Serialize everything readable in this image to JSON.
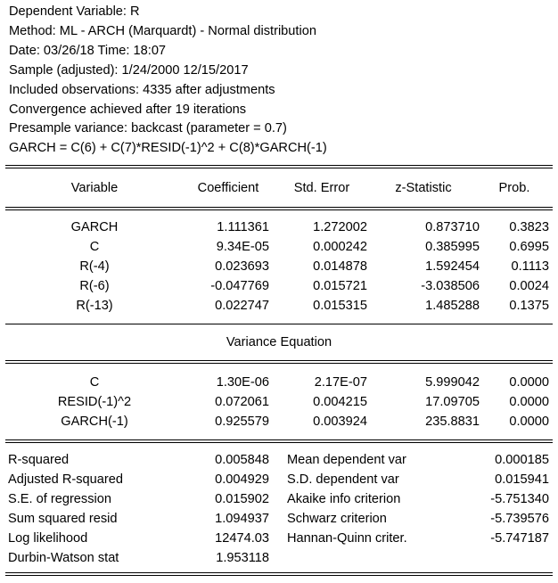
{
  "header": {
    "lines": [
      "Dependent Variable: R",
      "Method: ML - ARCH (Marquardt) - Normal distribution",
      "Date: 03/26/18   Time: 18:07",
      "Sample (adjusted): 1/24/2000 12/15/2017",
      "Included observations: 4335 after adjustments",
      "Convergence achieved after 19 iterations",
      "Presample variance: backcast (parameter = 0.7)",
      "GARCH = C(6) + C(7)*RESID(-1)^2 + C(8)*GARCH(-1)"
    ]
  },
  "columns": {
    "variable": "Variable",
    "coefficient": "Coefficient",
    "std_error": "Std. Error",
    "z_statistic": "z-Statistic",
    "prob": "Prob."
  },
  "mean_rows": [
    {
      "variable": "GARCH",
      "coefficient": "1.111361",
      "std_error": "1.272002",
      "z_statistic": "0.873710",
      "prob": "0.3823"
    },
    {
      "variable": "C",
      "coefficient": "9.34E-05",
      "std_error": "0.000242",
      "z_statistic": "0.385995",
      "prob": "0.6995"
    },
    {
      "variable": "R(-4)",
      "coefficient": "0.023693",
      "std_error": "0.014878",
      "z_statistic": "1.592454",
      "prob": "0.1113"
    },
    {
      "variable": "R(-6)",
      "coefficient": "-0.047769",
      "std_error": "0.015721",
      "z_statistic": "-3.038506",
      "prob": "0.0024"
    },
    {
      "variable": "R(-13)",
      "coefficient": "0.022747",
      "std_error": "0.015315",
      "z_statistic": "1.485288",
      "prob": "0.1375"
    }
  ],
  "variance_title": "Variance Equation",
  "variance_rows": [
    {
      "variable": "C",
      "coefficient": "1.30E-06",
      "std_error": "2.17E-07",
      "z_statistic": "5.999042",
      "prob": "0.0000"
    },
    {
      "variable": "RESID(-1)^2",
      "coefficient": "0.072061",
      "std_error": "0.004215",
      "z_statistic": "17.09705",
      "prob": "0.0000"
    },
    {
      "variable": "GARCH(-1)",
      "coefficient": "0.925579",
      "std_error": "0.003924",
      "z_statistic": "235.8831",
      "prob": "0.0000"
    }
  ],
  "stats": {
    "left": [
      {
        "label": "R-squared",
        "value": "0.005848"
      },
      {
        "label": "Adjusted R-squared",
        "value": "0.004929"
      },
      {
        "label": "S.E. of regression",
        "value": "0.015902"
      },
      {
        "label": "Sum squared resid",
        "value": "1.094937"
      },
      {
        "label": "Log likelihood",
        "value": "12474.03"
      },
      {
        "label": "Durbin-Watson stat",
        "value": "1.953118"
      }
    ],
    "right": [
      {
        "label": "Mean dependent var",
        "value": "0.000185"
      },
      {
        "label": "S.D. dependent var",
        "value": "0.015941"
      },
      {
        "label": "Akaike info criterion",
        "value": "-5.751340"
      },
      {
        "label": "Schwarz criterion",
        "value": "-5.739576"
      },
      {
        "label": "Hannan-Quinn criter.",
        "value": "-5.747187"
      }
    ]
  }
}
